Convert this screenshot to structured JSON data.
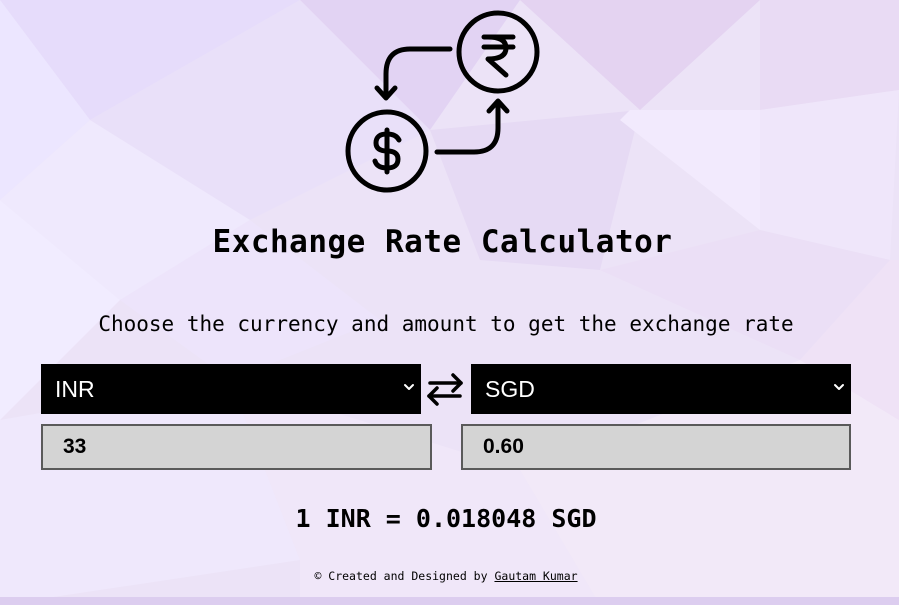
{
  "header": {
    "logo_icon": "currency-exchange-icon",
    "title": "Exchange Rate Calculator",
    "subtitle": "Choose the currency and amount to get the exchange rate"
  },
  "converter": {
    "from_currency": "INR",
    "to_currency": "SGD",
    "swap_icon": "swap-arrows-icon",
    "from_amount": "33",
    "to_amount": "0.60"
  },
  "result": {
    "rate_text": "1 INR = 0.018048 SGD"
  },
  "footer": {
    "prefix": "© Created and Designed by",
    "author": "Gautam Kumar"
  },
  "colors": {
    "select_bg": "#000000",
    "select_text": "#ffffff",
    "input_bg": "#d4d4d4",
    "page_bg": "#ece3f7"
  }
}
